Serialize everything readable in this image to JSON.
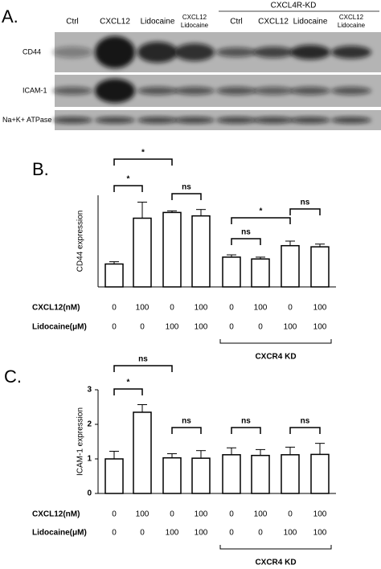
{
  "blot": {
    "panel_label": "A.",
    "group_label": "CXCL4R-KD",
    "lanes": [
      "Ctrl",
      "CXCL12",
      "Lidocaine",
      [
        "CXCL12",
        "Lidocaine"
      ],
      "Ctrl",
      "CXCL12",
      "Lidocaine",
      [
        "CXCL12",
        "Lidocaine"
      ]
    ],
    "rows": [
      "CD44",
      "ICAM-1",
      "Na+K+ ATPase"
    ]
  },
  "chart_data": [
    {
      "type": "bar",
      "panel_label": "B.",
      "ylabel": "CD44 expression",
      "categories": [
        null,
        null,
        null,
        null,
        null,
        null,
        null,
        null
      ],
      "values": [
        1.0,
        3.0,
        3.25,
        3.1,
        1.3,
        1.22,
        1.8,
        1.75
      ],
      "errors": [
        0.1,
        0.7,
        0.07,
        0.28,
        0.1,
        0.08,
        0.2,
        0.12
      ],
      "ylim": [
        0,
        4
      ],
      "color": "#ffffff",
      "grid": false,
      "annotations": [
        "*",
        "*",
        "ns",
        "*",
        "ns",
        "ns"
      ],
      "condition_rows": [
        {
          "name": "CXCL12(nM)",
          "values": [
            0,
            100,
            0,
            100,
            0,
            100,
            0,
            100
          ]
        },
        {
          "name": "Lidocaine(μM)",
          "values": [
            0,
            0,
            100,
            100,
            0,
            0,
            100,
            100
          ]
        }
      ],
      "group_label": "CXCR4 KD"
    },
    {
      "type": "bar",
      "panel_label": "C.",
      "ylabel": "ICAM-1 expression",
      "categories": [
        null,
        null,
        null,
        null,
        null,
        null,
        null,
        null
      ],
      "values": [
        1.0,
        2.35,
        1.03,
        1.02,
        1.12,
        1.1,
        1.12,
        1.13
      ],
      "errors": [
        0.22,
        0.22,
        0.12,
        0.22,
        0.2,
        0.17,
        0.22,
        0.32
      ],
      "ylim": [
        0,
        3
      ],
      "yticks": [
        0,
        1,
        2,
        3
      ],
      "color": "#ffffff",
      "grid": false,
      "annotations": [
        "ns",
        "*",
        "ns",
        "ns",
        "ns"
      ],
      "condition_rows": [
        {
          "name": "CXCL12(nM)",
          "values": [
            0,
            100,
            0,
            100,
            0,
            100,
            0,
            100
          ]
        },
        {
          "name": "Lidocaine(μM)",
          "values": [
            0,
            0,
            100,
            100,
            0,
            0,
            100,
            100
          ]
        }
      ],
      "group_label": "CXCR4 KD"
    }
  ]
}
